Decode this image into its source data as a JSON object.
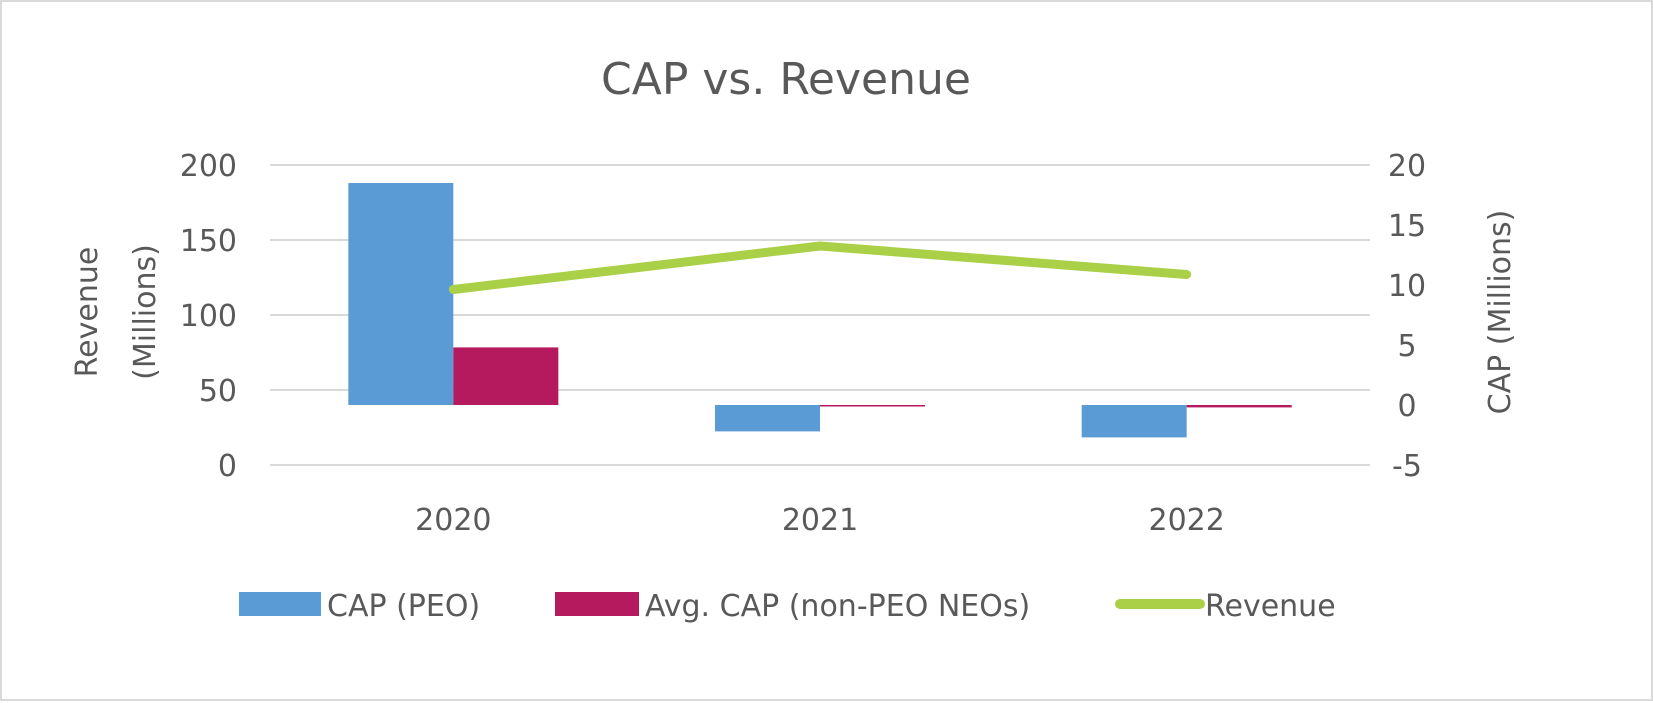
{
  "chart_data": {
    "type": "bar",
    "title": "CAP vs. Revenue",
    "categories": [
      "2020",
      "2021",
      "2022"
    ],
    "series": [
      {
        "name": "CAP (PEO)",
        "kind": "bar",
        "axis": "right",
        "color": "#5b9bd5",
        "values": [
          18.5,
          -2.2,
          -2.7
        ]
      },
      {
        "name": "Avg. CAP (non-PEO NEOs)",
        "kind": "bar",
        "axis": "right",
        "color": "#b41a5d",
        "values": [
          4.8,
          -0.05,
          -0.2
        ]
      },
      {
        "name": "Revenue",
        "kind": "line",
        "axis": "left",
        "color": "#a9d046",
        "values": [
          117,
          146,
          127
        ]
      }
    ],
    "ylabel": "Revenue (Millions)",
    "ylabel_lines": [
      "Revenue",
      "(Millions)"
    ],
    "y2label": "CAP (Millions)",
    "ylim": [
      0,
      200
    ],
    "y2lim": [
      -5,
      20
    ],
    "yticks": [
      "0",
      "50",
      "100",
      "150",
      "200"
    ],
    "y2ticks": [
      "-5",
      "0",
      "5",
      "10",
      "15",
      "20"
    ],
    "grid": true,
    "legend_position": "bottom"
  }
}
